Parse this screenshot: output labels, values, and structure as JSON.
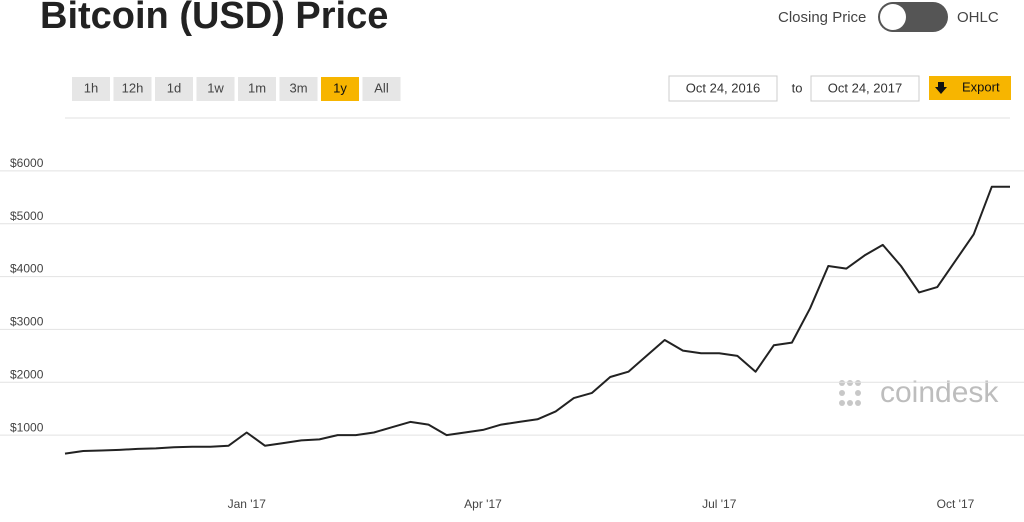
{
  "chart_data": {
    "type": "line",
    "title": "Bitcoin (USD) Price",
    "categories": [
      null,
      null,
      null,
      null,
      null,
      null,
      null,
      null,
      null,
      null,
      "Jan '17",
      null,
      null,
      null,
      null,
      null,
      null,
      null,
      null,
      null,
      null,
      null,
      null,
      "Apr '17",
      null,
      null,
      null,
      null,
      null,
      null,
      null,
      null,
      null,
      null,
      null,
      null,
      "Jul '17",
      null,
      null,
      null,
      null,
      null,
      null,
      null,
      null,
      null,
      null,
      null,
      null,
      "Oct '17",
      null,
      null,
      null
    ],
    "values": [
      650,
      700,
      710,
      720,
      740,
      750,
      770,
      780,
      780,
      800,
      1050,
      800,
      850,
      900,
      920,
      1000,
      1000,
      1050,
      1150,
      1250,
      1200,
      1000,
      1050,
      1100,
      1200,
      1250,
      1300,
      1450,
      1700,
      1800,
      2100,
      2200,
      2500,
      2800,
      2600,
      2550,
      2550,
      2500,
      2200,
      2700,
      2750,
      3400,
      4200,
      4150,
      4400,
      4600,
      4200,
      3700,
      3800,
      4300,
      4800,
      5700,
      5700
    ],
    "color": "#222222",
    "ylim": [
      0,
      7000
    ],
    "yticks": [
      {
        "value": 1000,
        "label": "$1000"
      },
      {
        "value": 2000,
        "label": "$2000"
      },
      {
        "value": 3000,
        "label": "$3000"
      },
      {
        "value": 4000,
        "label": "$4000"
      },
      {
        "value": 5000,
        "label": "$5000"
      },
      {
        "value": 6000,
        "label": "$6000"
      }
    ],
    "grid": true
  },
  "controls": {
    "toggle_left": "Closing Price",
    "toggle_right": "OHLC",
    "ranges": [
      "1h",
      "12h",
      "1d",
      "1w",
      "1m",
      "3m",
      "1y",
      "All"
    ],
    "active_range_index": 6,
    "date_from": "Oct 24, 2016",
    "date_to_label": "to",
    "date_to": "Oct 24, 2017",
    "export": "Export"
  },
  "watermark": "coindesk"
}
